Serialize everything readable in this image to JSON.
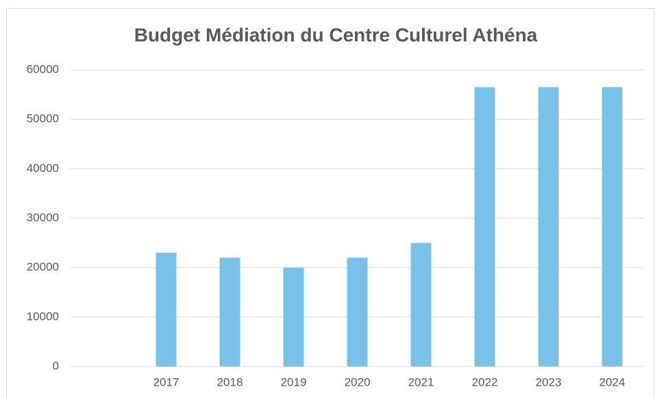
{
  "chart_data": {
    "type": "bar",
    "title": "Budget Médiation du Centre Culturel Athéna",
    "categories": [
      null,
      "2017",
      "2018",
      "2019",
      "2020",
      "2021",
      "2022",
      "2023",
      "2024"
    ],
    "values": [
      null,
      23000,
      22000,
      20000,
      22000,
      25000,
      56500,
      56500,
      56500
    ],
    "color": "#78c1e8",
    "ylim": [
      0,
      60000
    ],
    "yticks": [
      0,
      10000,
      20000,
      30000,
      40000,
      50000,
      60000
    ],
    "grid": true
  }
}
